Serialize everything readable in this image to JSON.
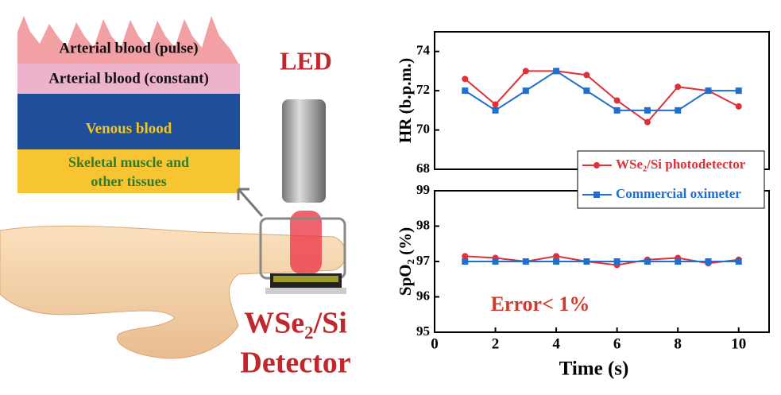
{
  "illustration": {
    "layers": [
      "Arterial blood (pulse)",
      "Arterial blood (constant)",
      "Venous blood",
      [
        "Skeletal muscle and",
        "other tissues"
      ]
    ],
    "led": "LED",
    "detector": [
      "WSe₂/Si",
      "Detector"
    ]
  },
  "chart_data": [
    {
      "type": "line",
      "ylabel": "HR (b.p.m.)",
      "x": [
        1,
        2,
        3,
        4,
        5,
        6,
        7,
        8,
        9,
        10
      ],
      "xlim": [
        0,
        11
      ],
      "ylim": [
        68,
        75
      ],
      "yticks": [
        68,
        70,
        72,
        74
      ],
      "series": [
        {
          "name": "WSe₂/Si photodetector",
          "color": "#e0313a",
          "marker": "circle",
          "values": [
            72.6,
            71.3,
            73.0,
            73.0,
            72.8,
            71.5,
            70.4,
            72.2,
            72.0,
            71.2
          ]
        },
        {
          "name": "Commercial oximeter",
          "color": "#1f6fd0",
          "marker": "square",
          "values": [
            72,
            71,
            72,
            73,
            72,
            71,
            71,
            71,
            72,
            72
          ]
        }
      ]
    },
    {
      "type": "line",
      "ylabel": "SpO₂ (%)",
      "xlabel": "Time (s)",
      "annotation": "Error< 1%",
      "x": [
        1,
        2,
        3,
        4,
        5,
        6,
        7,
        8,
        9,
        10
      ],
      "xlim": [
        0,
        11
      ],
      "xticks": [
        0,
        2,
        4,
        6,
        8,
        10
      ],
      "ylim": [
        95,
        99
      ],
      "yticks": [
        95,
        96,
        97,
        98,
        99
      ],
      "series": [
        {
          "color": "#e0313a",
          "marker": "circle",
          "values": [
            97.15,
            97.1,
            97.0,
            97.15,
            97.0,
            96.9,
            97.05,
            97.1,
            96.95,
            97.05
          ]
        },
        {
          "color": "#1f6fd0",
          "marker": "square",
          "values": [
            97,
            97,
            97,
            97,
            97,
            97,
            97,
            97,
            97,
            97
          ]
        }
      ]
    }
  ]
}
